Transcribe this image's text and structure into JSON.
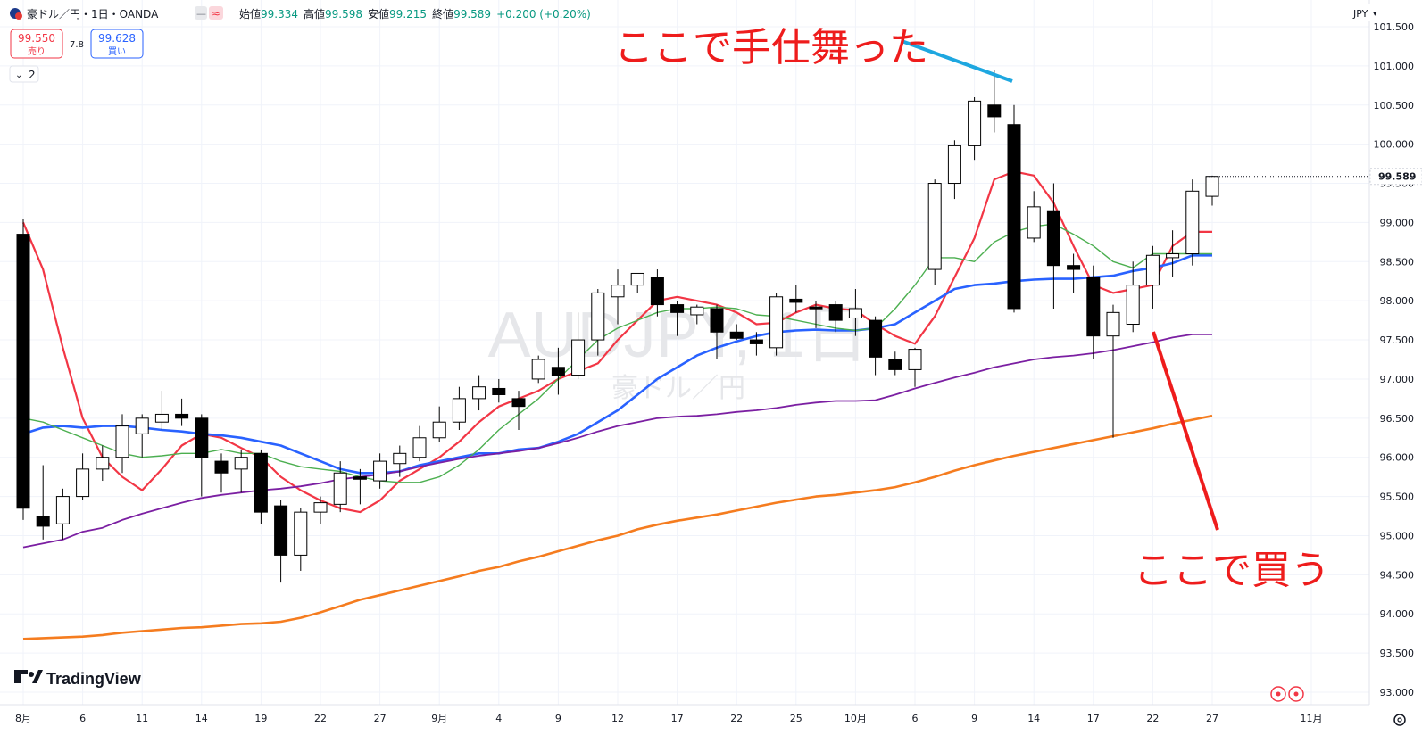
{
  "header": {
    "symbol_title": "豪ドル／円・1日・OANDA",
    "ohlc": [
      {
        "label": "始値",
        "value": "99.334"
      },
      {
        "label": "高値",
        "value": "99.598"
      },
      {
        "label": "安値",
        "value": "99.215"
      },
      {
        "label": "終値",
        "value": "99.589"
      }
    ],
    "change": "+0.200 (+0.20%)",
    "sell_price": "99.550",
    "sell_label": "売り",
    "spread": "7.8",
    "buy_price": "99.628",
    "buy_label": "買い",
    "indicator_count": "2",
    "currency": "JPY"
  },
  "watermark": {
    "symbol": "AUDJPY, 1日",
    "name": "豪ドル／円"
  },
  "branding": {
    "logo_text": "TradingView"
  },
  "annotations": {
    "top_text": "ここで手仕舞った",
    "bottom_text": "ここで買う",
    "color": "#ee1c1c",
    "arrow_top_color": "#1ea7e0",
    "arrow_bottom_color": "#ee1c1c"
  },
  "chart_data": {
    "type": "candlestick",
    "y_axis": {
      "min": 93.0,
      "max": 101.5,
      "ticks": [
        "93.000",
        "93.500",
        "94.000",
        "94.500",
        "95.000",
        "95.500",
        "96.000",
        "96.500",
        "97.000",
        "97.500",
        "98.000",
        "98.500",
        "99.000",
        "99.500",
        "100.000",
        "100.500",
        "101.000",
        "101.500"
      ],
      "last_price": "99.589"
    },
    "x_axis": {
      "ticks": [
        {
          "i": 0,
          "label": "8月"
        },
        {
          "i": 3,
          "label": "6"
        },
        {
          "i": 6,
          "label": "11"
        },
        {
          "i": 9,
          "label": "14"
        },
        {
          "i": 12,
          "label": "19"
        },
        {
          "i": 15,
          "label": "22"
        },
        {
          "i": 18,
          "label": "27"
        },
        {
          "i": 21,
          "label": "9月"
        },
        {
          "i": 24,
          "label": "4"
        },
        {
          "i": 27,
          "label": "9"
        },
        {
          "i": 30,
          "label": "12"
        },
        {
          "i": 33,
          "label": "17"
        },
        {
          "i": 36,
          "label": "22"
        },
        {
          "i": 39,
          "label": "25"
        },
        {
          "i": 42,
          "label": "10月"
        },
        {
          "i": 45,
          "label": "6"
        },
        {
          "i": 48,
          "label": "9"
        },
        {
          "i": 51,
          "label": "14"
        },
        {
          "i": 54,
          "label": "17"
        },
        {
          "i": 57,
          "label": "22"
        },
        {
          "i": 60,
          "label": "27"
        },
        {
          "i": 65,
          "label": "11月"
        }
      ]
    },
    "candles": [
      {
        "o": 98.85,
        "h": 99.05,
        "l": 95.2,
        "c": 95.35
      },
      {
        "o": 95.25,
        "h": 95.9,
        "l": 94.95,
        "c": 95.12
      },
      {
        "o": 95.15,
        "h": 95.6,
        "l": 94.95,
        "c": 95.5
      },
      {
        "o": 95.5,
        "h": 96.05,
        "l": 95.45,
        "c": 95.85
      },
      {
        "o": 95.85,
        "h": 96.15,
        "l": 95.7,
        "c": 96.0
      },
      {
        "o": 96.0,
        "h": 96.55,
        "l": 95.8,
        "c": 96.4
      },
      {
        "o": 96.3,
        "h": 96.55,
        "l": 96.0,
        "c": 96.5
      },
      {
        "o": 96.45,
        "h": 96.85,
        "l": 96.35,
        "c": 96.55
      },
      {
        "o": 96.55,
        "h": 96.75,
        "l": 96.4,
        "c": 96.5
      },
      {
        "o": 96.5,
        "h": 96.55,
        "l": 95.5,
        "c": 96.0
      },
      {
        "o": 95.95,
        "h": 96.05,
        "l": 95.55,
        "c": 95.8
      },
      {
        "o": 95.85,
        "h": 96.1,
        "l": 95.55,
        "c": 96.0
      },
      {
        "o": 96.05,
        "h": 96.1,
        "l": 95.15,
        "c": 95.3
      },
      {
        "o": 95.38,
        "h": 95.45,
        "l": 94.4,
        "c": 94.75
      },
      {
        "o": 94.75,
        "h": 95.35,
        "l": 94.55,
        "c": 95.3
      },
      {
        "o": 95.3,
        "h": 95.5,
        "l": 95.15,
        "c": 95.42
      },
      {
        "o": 95.4,
        "h": 95.95,
        "l": 95.3,
        "c": 95.8
      },
      {
        "o": 95.75,
        "h": 95.85,
        "l": 95.4,
        "c": 95.72
      },
      {
        "o": 95.7,
        "h": 96.05,
        "l": 95.6,
        "c": 95.95
      },
      {
        "o": 95.92,
        "h": 96.15,
        "l": 95.75,
        "c": 96.05
      },
      {
        "o": 96.0,
        "h": 96.4,
        "l": 95.95,
        "c": 96.25
      },
      {
        "o": 96.25,
        "h": 96.65,
        "l": 96.2,
        "c": 96.45
      },
      {
        "o": 96.45,
        "h": 96.9,
        "l": 96.35,
        "c": 96.75
      },
      {
        "o": 96.75,
        "h": 97.05,
        "l": 96.6,
        "c": 96.9
      },
      {
        "o": 96.88,
        "h": 97.0,
        "l": 96.7,
        "c": 96.8
      },
      {
        "o": 96.75,
        "h": 96.85,
        "l": 96.35,
        "c": 96.65
      },
      {
        "o": 97.0,
        "h": 97.3,
        "l": 96.95,
        "c": 97.25
      },
      {
        "o": 97.15,
        "h": 97.4,
        "l": 96.8,
        "c": 97.05
      },
      {
        "o": 97.05,
        "h": 97.85,
        "l": 97.0,
        "c": 97.5
      },
      {
        "o": 97.5,
        "h": 98.15,
        "l": 97.3,
        "c": 98.1
      },
      {
        "o": 98.05,
        "h": 98.4,
        "l": 97.7,
        "c": 98.2
      },
      {
        "o": 98.2,
        "h": 98.35,
        "l": 98.1,
        "c": 98.35
      },
      {
        "o": 98.3,
        "h": 98.4,
        "l": 97.8,
        "c": 97.95
      },
      {
        "o": 97.95,
        "h": 98.0,
        "l": 97.55,
        "c": 97.85
      },
      {
        "o": 97.82,
        "h": 97.95,
        "l": 97.7,
        "c": 97.92
      },
      {
        "o": 97.9,
        "h": 97.95,
        "l": 97.25,
        "c": 97.6
      },
      {
        "o": 97.6,
        "h": 97.7,
        "l": 97.5,
        "c": 97.52
      },
      {
        "o": 97.5,
        "h": 97.6,
        "l": 97.3,
        "c": 97.45
      },
      {
        "o": 97.4,
        "h": 98.1,
        "l": 97.3,
        "c": 98.05
      },
      {
        "o": 98.02,
        "h": 98.2,
        "l": 97.85,
        "c": 97.98
      },
      {
        "o": 97.92,
        "h": 98.0,
        "l": 97.65,
        "c": 97.9
      },
      {
        "o": 97.95,
        "h": 98.0,
        "l": 97.6,
        "c": 97.75
      },
      {
        "o": 97.78,
        "h": 98.15,
        "l": 97.55,
        "c": 97.9
      },
      {
        "o": 97.75,
        "h": 97.8,
        "l": 97.05,
        "c": 97.28
      },
      {
        "o": 97.25,
        "h": 97.35,
        "l": 97.05,
        "c": 97.12
      },
      {
        "o": 97.12,
        "h": 97.4,
        "l": 96.9,
        "c": 97.38
      },
      {
        "o": 98.4,
        "h": 99.55,
        "l": 98.2,
        "c": 99.5
      },
      {
        "o": 99.5,
        "h": 100.05,
        "l": 99.3,
        "c": 99.98
      },
      {
        "o": 99.98,
        "h": 100.6,
        "l": 99.8,
        "c": 100.55
      },
      {
        "o": 100.5,
        "h": 100.95,
        "l": 100.15,
        "c": 100.35
      },
      {
        "o": 100.25,
        "h": 100.5,
        "l": 97.85,
        "c": 97.9
      },
      {
        "o": 98.8,
        "h": 99.4,
        "l": 98.75,
        "c": 99.2
      },
      {
        "o": 99.15,
        "h": 99.5,
        "l": 97.9,
        "c": 98.45
      },
      {
        "o": 98.45,
        "h": 98.6,
        "l": 98.1,
        "c": 98.4
      },
      {
        "o": 98.3,
        "h": 98.45,
        "l": 97.25,
        "c": 97.55
      },
      {
        "o": 97.55,
        "h": 97.95,
        "l": 96.25,
        "c": 97.85
      },
      {
        "o": 97.7,
        "h": 98.5,
        "l": 97.6,
        "c": 98.2
      },
      {
        "o": 98.2,
        "h": 98.7,
        "l": 97.9,
        "c": 98.58
      },
      {
        "o": 98.55,
        "h": 98.9,
        "l": 98.3,
        "c": 98.6
      },
      {
        "o": 98.6,
        "h": 99.55,
        "l": 98.45,
        "c": 99.4
      },
      {
        "o": 99.334,
        "h": 99.598,
        "l": 99.215,
        "c": 99.589
      }
    ],
    "series": [
      {
        "color": "#f23645",
        "width": 2.2,
        "values": [
          99.0,
          98.4,
          97.4,
          96.5,
          96.0,
          95.75,
          95.58,
          95.85,
          96.15,
          96.3,
          96.25,
          96.12,
          96.0,
          95.75,
          95.58,
          95.45,
          95.35,
          95.3,
          95.45,
          95.7,
          95.85,
          96.0,
          96.2,
          96.45,
          96.65,
          96.75,
          96.85,
          97.0,
          97.1,
          97.2,
          97.5,
          97.75,
          98.0,
          98.05,
          98.0,
          97.95,
          97.85,
          97.7,
          97.72,
          97.85,
          97.95,
          97.9,
          97.88,
          97.7,
          97.55,
          97.45,
          97.8,
          98.3,
          98.8,
          99.55,
          99.65,
          99.6,
          99.25,
          98.7,
          98.2,
          98.1,
          98.15,
          98.2,
          98.7,
          98.88,
          98.88
        ]
      },
      {
        "color": "#2962ff",
        "width": 2.6,
        "values": [
          96.3,
          96.38,
          96.4,
          96.38,
          96.4,
          96.4,
          96.38,
          96.35,
          96.33,
          96.3,
          96.28,
          96.25,
          96.2,
          96.15,
          96.05,
          95.95,
          95.85,
          95.8,
          95.8,
          95.82,
          95.9,
          95.95,
          96.0,
          96.05,
          96.05,
          96.1,
          96.12,
          96.2,
          96.3,
          96.45,
          96.6,
          96.8,
          97.0,
          97.15,
          97.3,
          97.4,
          97.48,
          97.55,
          97.6,
          97.62,
          97.63,
          97.62,
          97.62,
          97.65,
          97.7,
          97.85,
          98.0,
          98.15,
          98.2,
          98.22,
          98.25,
          98.27,
          98.28,
          98.28,
          98.3,
          98.32,
          98.38,
          98.42,
          98.48,
          98.58,
          98.58
        ]
      },
      {
        "color": "#4caf50",
        "width": 1.4,
        "values": [
          96.5,
          96.45,
          96.35,
          96.25,
          96.15,
          96.05,
          96.0,
          96.02,
          96.05,
          96.05,
          96.1,
          96.05,
          96.05,
          95.95,
          95.88,
          95.85,
          95.82,
          95.75,
          95.7,
          95.68,
          95.68,
          95.75,
          95.9,
          96.1,
          96.35,
          96.55,
          96.75,
          97.0,
          97.25,
          97.5,
          97.65,
          97.75,
          97.85,
          97.9,
          97.9,
          97.92,
          97.9,
          97.82,
          97.8,
          97.75,
          97.7,
          97.65,
          97.62,
          97.65,
          97.9,
          98.2,
          98.55,
          98.55,
          98.5,
          98.75,
          98.88,
          98.95,
          98.98,
          98.85,
          98.7,
          98.5,
          98.42,
          98.6,
          98.6,
          98.6,
          98.6
        ]
      },
      {
        "color": "#7b1fa2",
        "width": 1.8,
        "values": [
          94.85,
          94.9,
          94.95,
          95.05,
          95.1,
          95.2,
          95.28,
          95.35,
          95.42,
          95.48,
          95.52,
          95.55,
          95.58,
          95.6,
          95.63,
          95.67,
          95.72,
          95.75,
          95.78,
          95.82,
          95.88,
          95.93,
          95.98,
          96.02,
          96.05,
          96.08,
          96.12,
          96.18,
          96.25,
          96.33,
          96.4,
          96.45,
          96.5,
          96.52,
          96.53,
          96.55,
          96.58,
          96.6,
          96.63,
          96.67,
          96.7,
          96.72,
          96.72,
          96.73,
          96.8,
          96.88,
          96.95,
          97.02,
          97.08,
          97.15,
          97.2,
          97.25,
          97.28,
          97.3,
          97.33,
          97.37,
          97.42,
          97.47,
          97.53,
          97.57,
          97.57
        ]
      },
      {
        "color": "#f57c1f",
        "width": 2.6,
        "values": [
          93.68,
          93.69,
          93.7,
          93.71,
          93.73,
          93.76,
          93.78,
          93.8,
          93.82,
          93.83,
          93.85,
          93.87,
          93.88,
          93.9,
          93.95,
          94.02,
          94.1,
          94.18,
          94.24,
          94.3,
          94.36,
          94.42,
          94.48,
          94.55,
          94.6,
          94.67,
          94.73,
          94.8,
          94.87,
          94.94,
          95.0,
          95.08,
          95.14,
          95.19,
          95.23,
          95.27,
          95.32,
          95.37,
          95.42,
          95.46,
          95.5,
          95.52,
          95.55,
          95.58,
          95.62,
          95.68,
          95.75,
          95.83,
          95.9,
          95.96,
          96.02,
          96.07,
          96.12,
          96.17,
          96.22,
          96.27,
          96.32,
          96.37,
          96.43,
          96.48,
          96.53
        ]
      }
    ]
  }
}
